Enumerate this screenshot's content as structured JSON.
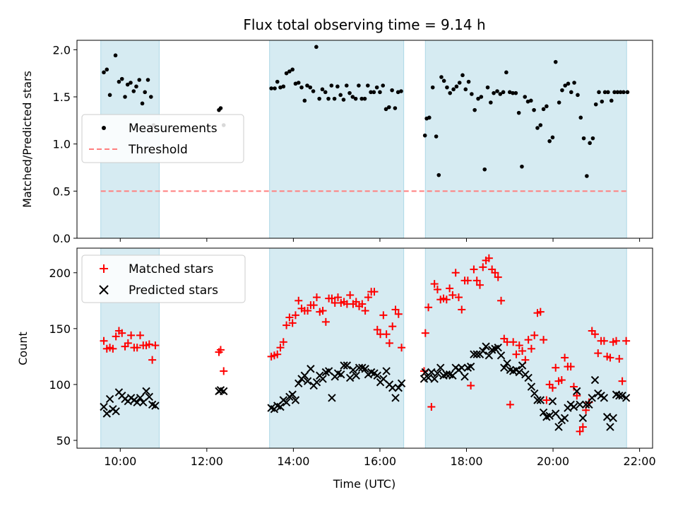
{
  "chart_data": {
    "type": "scatter",
    "title": "Flux total observing time = 9.14 h",
    "xlabel": "Time (UTC)",
    "xlim": [
      9.0,
      22.3
    ],
    "x_ticks": [
      {
        "value": 10,
        "label": "10:00"
      },
      {
        "value": 12,
        "label": "12:00"
      },
      {
        "value": 14,
        "label": "14:00"
      },
      {
        "value": 16,
        "label": "16:00"
      },
      {
        "value": 18,
        "label": "18:00"
      },
      {
        "value": 20,
        "label": "20:00"
      },
      {
        "value": 22,
        "label": "22:00"
      }
    ],
    "observing_windows": [
      [
        9.55,
        10.9
      ],
      [
        13.45,
        16.55
      ],
      [
        17.05,
        21.7
      ]
    ],
    "band_color": "#add8e6",
    "panels": [
      {
        "ylabel": "Matched/Predicted stars",
        "ylim": [
          0.0,
          2.1
        ],
        "y_ticks": [
          {
            "value": 0.0,
            "label": "0.0"
          },
          {
            "value": 0.5,
            "label": "0.5"
          },
          {
            "value": 1.0,
            "label": "1.0"
          },
          {
            "value": 1.5,
            "label": "1.5"
          },
          {
            "value": 2.0,
            "label": "2.0"
          }
        ],
        "legend_position": "center-left",
        "series": [
          {
            "name": "Measurements",
            "marker": "dot",
            "color": "#000000",
            "x": [
              9.62,
              9.69,
              9.76,
              9.89,
              9.97,
              10.04,
              10.11,
              10.17,
              10.24,
              10.31,
              10.37,
              10.44,
              10.51,
              10.57,
              10.64,
              10.71,
              10.77,
              12.28,
              12.32,
              12.39,
              13.49,
              13.57,
              13.63,
              13.7,
              13.77,
              13.84,
              13.91,
              13.98,
              14.05,
              14.12,
              14.19,
              14.26,
              14.32,
              14.39,
              14.46,
              14.53,
              14.6,
              14.67,
              14.74,
              14.81,
              14.88,
              14.95,
              15.02,
              15.09,
              15.16,
              15.23,
              15.3,
              15.37,
              15.44,
              15.51,
              15.58,
              15.65,
              15.72,
              15.79,
              15.86,
              15.93,
              16.0,
              16.07,
              16.14,
              16.21,
              16.28,
              16.35,
              16.42,
              16.49,
              17.04,
              17.08,
              17.14,
              17.22,
              17.3,
              17.36,
              17.42,
              17.48,
              17.55,
              17.62,
              17.7,
              17.77,
              17.84,
              17.91,
              17.98,
              18.05,
              18.12,
              18.19,
              18.27,
              18.34,
              18.42,
              18.49,
              18.56,
              18.63,
              18.71,
              18.78,
              18.85,
              18.92,
              19.0,
              19.07,
              19.14,
              19.21,
              19.28,
              19.35,
              19.42,
              19.49,
              19.56,
              19.64,
              19.71,
              19.78,
              19.85,
              19.92,
              19.99,
              20.06,
              20.14,
              20.21,
              20.28,
              20.35,
              20.42,
              20.49,
              20.57,
              20.64,
              20.71,
              20.78,
              20.85,
              20.92,
              20.99,
              21.06,
              21.13,
              21.2,
              21.27,
              21.35,
              21.42,
              21.49,
              21.56,
              21.63,
              21.72
            ],
            "y": [
              1.76,
              1.79,
              1.52,
              1.94,
              1.66,
              1.69,
              1.5,
              1.63,
              1.65,
              1.56,
              1.61,
              1.68,
              1.43,
              1.55,
              1.68,
              1.5,
              1.2,
              1.36,
              1.38,
              1.2,
              1.59,
              1.59,
              1.66,
              1.6,
              1.61,
              1.75,
              1.77,
              1.79,
              1.64,
              1.65,
              1.6,
              1.46,
              1.62,
              1.6,
              1.56,
              2.03,
              1.48,
              1.58,
              1.55,
              1.48,
              1.62,
              1.48,
              1.61,
              1.52,
              1.47,
              1.62,
              1.54,
              1.5,
              1.48,
              1.62,
              1.48,
              1.48,
              1.62,
              1.55,
              1.55,
              1.6,
              1.55,
              1.62,
              1.37,
              1.39,
              1.57,
              1.38,
              1.55,
              1.56,
              1.09,
              1.27,
              1.28,
              1.6,
              1.08,
              0.67,
              1.71,
              1.67,
              1.6,
              1.54,
              1.58,
              1.61,
              1.65,
              1.73,
              1.58,
              1.66,
              1.53,
              1.36,
              1.48,
              1.5,
              0.73,
              1.6,
              1.44,
              1.54,
              1.56,
              1.53,
              1.55,
              1.76,
              1.55,
              1.54,
              1.54,
              1.33,
              0.76,
              1.5,
              1.45,
              1.46,
              1.36,
              1.17,
              1.2,
              1.37,
              1.4,
              1.03,
              1.07,
              1.87,
              1.44,
              1.57,
              1.62,
              1.64,
              1.55,
              1.65,
              1.52,
              1.28,
              1.06,
              0.66,
              1.01,
              1.06,
              1.42,
              1.55,
              1.45,
              1.55,
              1.55,
              1.46,
              1.55,
              1.55,
              1.55,
              1.55,
              1.55
            ]
          },
          {
            "name": "Threshold",
            "marker": "dashed-line",
            "color": "#ff7f7f",
            "x": [
              9.55,
              21.7
            ],
            "y": [
              0.5,
              0.5
            ]
          }
        ]
      },
      {
        "ylabel": "Count",
        "ylim": [
          43,
          222
        ],
        "y_ticks": [
          {
            "value": 50,
            "label": "50"
          },
          {
            "value": 100,
            "label": "100"
          },
          {
            "value": 150,
            "label": "150"
          },
          {
            "value": 200,
            "label": "200"
          }
        ],
        "legend_position": "top-left",
        "series": [
          {
            "name": "Matched stars",
            "marker": "plus",
            "color": "#ff0000",
            "x": [
              9.62,
              9.69,
              9.76,
              9.83,
              9.9,
              9.97,
              10.04,
              10.11,
              10.18,
              10.25,
              10.32,
              10.39,
              10.46,
              10.53,
              10.6,
              10.67,
              10.74,
              10.81,
              12.28,
              12.32,
              12.39,
              13.49,
              13.56,
              13.63,
              13.7,
              13.77,
              13.84,
              13.91,
              13.98,
              14.05,
              14.12,
              14.19,
              14.26,
              14.33,
              14.4,
              14.47,
              14.54,
              14.61,
              14.68,
              14.75,
              14.82,
              14.89,
              14.96,
              15.03,
              15.1,
              15.17,
              15.24,
              15.31,
              15.38,
              15.45,
              15.52,
              15.59,
              15.66,
              15.73,
              15.8,
              15.87,
              15.94,
              16.01,
              16.08,
              16.15,
              16.22,
              16.29,
              16.36,
              16.43,
              16.5,
              17.02,
              17.05,
              17.12,
              17.19,
              17.26,
              17.33,
              17.4,
              17.47,
              17.54,
              17.61,
              17.68,
              17.75,
              17.82,
              17.89,
              17.96,
              18.03,
              18.1,
              18.17,
              18.24,
              18.31,
              18.38,
              18.45,
              18.52,
              18.59,
              18.66,
              18.73,
              18.8,
              18.87,
              18.94,
              19.01,
              19.08,
              19.15,
              19.22,
              19.29,
              19.36,
              19.43,
              19.5,
              19.57,
              19.64,
              19.71,
              19.78,
              19.85,
              19.92,
              19.99,
              20.06,
              20.13,
              20.2,
              20.27,
              20.34,
              20.41,
              20.48,
              20.55,
              20.62,
              20.69,
              20.76,
              20.83,
              20.9,
              20.97,
              21.04,
              21.11,
              21.18,
              21.25,
              21.32,
              21.39,
              21.46,
              21.53,
              21.6,
              21.69
            ],
            "y": [
              139,
              132,
              133,
              132,
              143,
              148,
              146,
              134,
              137,
              144,
              133,
              133,
              144,
              135,
              135,
              136,
              122,
              135,
              129,
              131,
              112,
              125,
              126,
              127,
              133,
              138,
              153,
              160,
              155,
              162,
              175,
              168,
              166,
              166,
              171,
              171,
              178,
              165,
              166,
              156,
              177,
              177,
              173,
              178,
              173,
              174,
              172,
              180,
              172,
              174,
              170,
              172,
              166,
              178,
              183,
              183,
              149,
              145,
              162,
              145,
              137,
              152,
              167,
              163,
              133,
              112,
              146,
              169,
              80,
              190,
              185,
              176,
              177,
              176,
              186,
              180,
              200,
              178,
              167,
              193,
              193,
              99,
              203,
              193,
              189,
              205,
              211,
              213,
              203,
              200,
              196,
              175,
              141,
              138,
              82,
              138,
              127,
              135,
              130,
              122,
              140,
              132,
              144,
              164,
              165,
              140,
              86,
              100,
              97,
              115,
              103,
              104,
              124,
              116,
              116,
              98,
              90,
              58,
              62,
              77,
              84,
              148,
              145,
              128,
              139,
              139,
              125,
              124,
              138,
              139,
              123,
              103,
              139
            ]
          },
          {
            "name": "Predicted stars",
            "marker": "x",
            "color": "#000000",
            "x": [
              9.62,
              9.69,
              9.76,
              9.83,
              9.9,
              9.97,
              10.04,
              10.11,
              10.18,
              10.25,
              10.32,
              10.39,
              10.46,
              10.53,
              10.6,
              10.67,
              10.74,
              10.81,
              12.28,
              12.32,
              12.39,
              13.49,
              13.56,
              13.63,
              13.7,
              13.77,
              13.84,
              13.91,
              13.98,
              14.05,
              14.12,
              14.19,
              14.26,
              14.33,
              14.4,
              14.47,
              14.54,
              14.61,
              14.68,
              14.75,
              14.82,
              14.89,
              14.96,
              15.03,
              15.1,
              15.17,
              15.24,
              15.31,
              15.38,
              15.45,
              15.52,
              15.59,
              15.66,
              15.73,
              15.8,
              15.87,
              15.94,
              16.01,
              16.08,
              16.15,
              16.22,
              16.29,
              16.36,
              16.43,
              16.5,
              17.02,
              17.05,
              17.12,
              17.19,
              17.26,
              17.33,
              17.4,
              17.47,
              17.54,
              17.61,
              17.68,
              17.75,
              17.82,
              17.89,
              17.96,
              18.03,
              18.1,
              18.17,
              18.24,
              18.31,
              18.38,
              18.45,
              18.52,
              18.59,
              18.66,
              18.73,
              18.8,
              18.87,
              18.94,
              19.01,
              19.08,
              19.15,
              19.22,
              19.29,
              19.36,
              19.43,
              19.5,
              19.57,
              19.64,
              19.71,
              19.78,
              19.85,
              19.92,
              19.99,
              20.06,
              20.13,
              20.2,
              20.27,
              20.34,
              20.41,
              20.48,
              20.55,
              20.62,
              20.69,
              20.76,
              20.83,
              20.9,
              20.97,
              21.04,
              21.11,
              21.18,
              21.25,
              21.32,
              21.39,
              21.46,
              21.53,
              21.6,
              21.69
            ],
            "y": [
              80,
              74,
              87,
              78,
              76,
              93,
              90,
              87,
              85,
              88,
              86,
              84,
              88,
              84,
              94,
              89,
              82,
              81,
              94,
              95,
              94,
              79,
              78,
              81,
              80,
              86,
              84,
              89,
              91,
              86,
              101,
              105,
              108,
              103,
              114,
              99,
              102,
              108,
              105,
              111,
              112,
              88,
              107,
              110,
              109,
              117,
              117,
              106,
              113,
              108,
              115,
              115,
              114,
              109,
              111,
              110,
              108,
              102,
              105,
              112,
              100,
              97,
              88,
              97,
              101,
              105,
              111,
              106,
              111,
              105,
              110,
              115,
              108,
              109,
              109,
              108,
              115,
              113,
              115,
              107,
              115,
              116,
              127,
              127,
              127,
              130,
              134,
              126,
              131,
              132,
              133,
              126,
              115,
              119,
              113,
              112,
              113,
              111,
              117,
              109,
              106,
              98,
              92,
              86,
              86,
              75,
              71,
              72,
              85,
              74,
              62,
              68,
              70,
              79,
              82,
              80,
              94,
              82,
              70,
              82,
              82,
              88,
              104,
              92,
              90,
              88,
              71,
              62,
              70,
              91,
              90,
              90,
              88
            ]
          }
        ]
      }
    ]
  }
}
